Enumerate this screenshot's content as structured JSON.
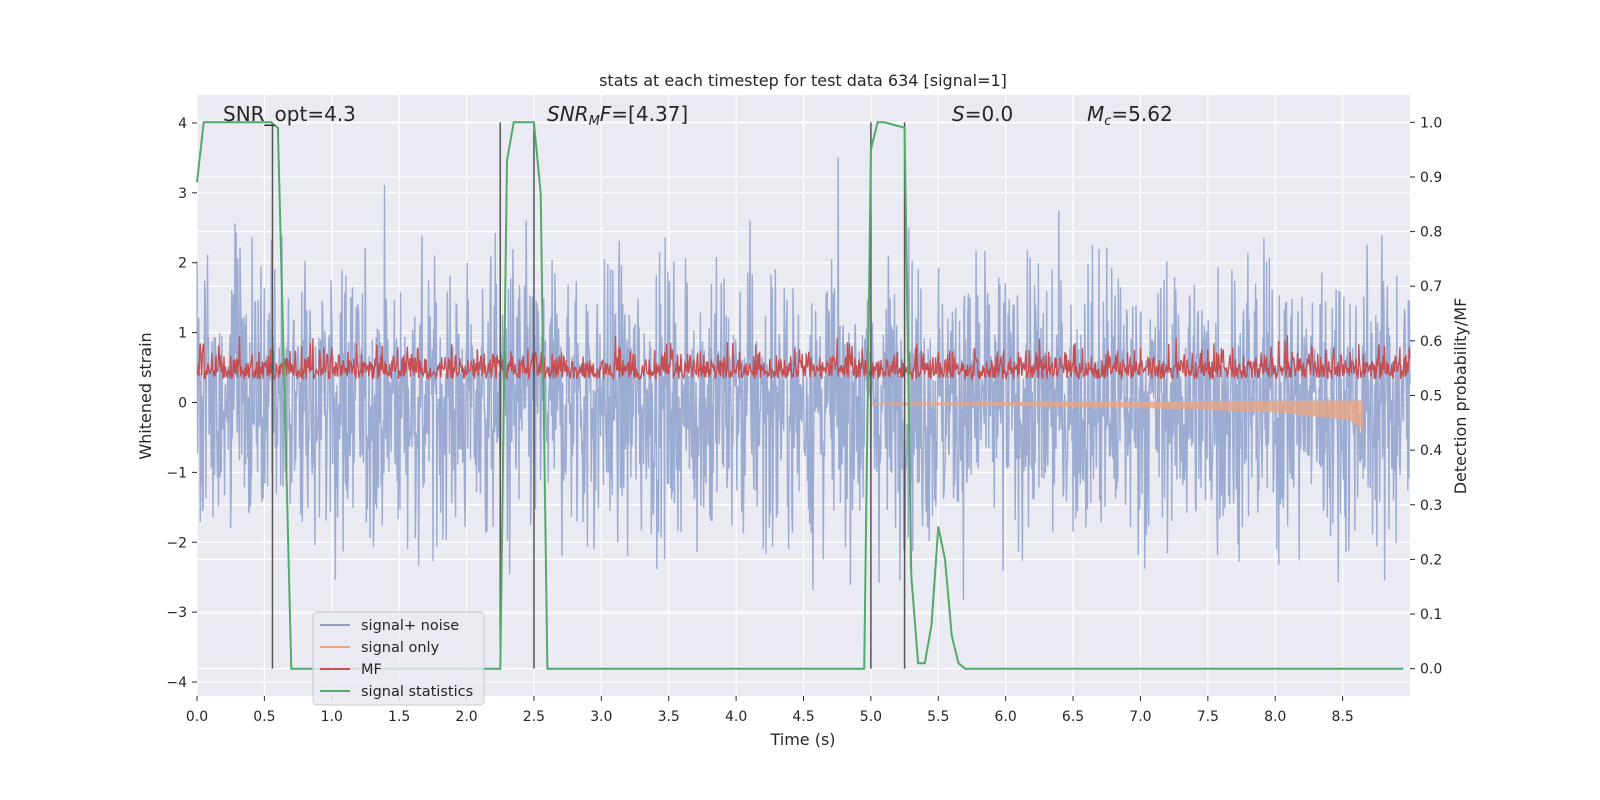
{
  "chart_data": {
    "type": "line",
    "title": "stats at each timestep for test data 634 [signal=1]",
    "xlabel": "Time (s)",
    "ylabel": "Whitened strain",
    "ylabel_right": "Detection probability/MF",
    "xlim": [
      0,
      9.0
    ],
    "ylim": [
      -4.2,
      4.4
    ],
    "ylim_right": [
      -0.05,
      1.05
    ],
    "x_ticks": [
      "0.0",
      "0.5",
      "1.0",
      "1.5",
      "2.0",
      "2.5",
      "3.0",
      "3.5",
      "4.0",
      "4.5",
      "5.0",
      "5.5",
      "6.0",
      "6.5",
      "7.0",
      "7.5",
      "8.0",
      "8.5"
    ],
    "y_ticks": [
      "4",
      "3",
      "2",
      "1",
      "0",
      "−1",
      "−2",
      "−3",
      "−4"
    ],
    "y_ticks_right": [
      "1.0",
      "0.9",
      "0.8",
      "0.7",
      "0.6",
      "0.5",
      "0.4",
      "0.3",
      "0.2",
      "0.1",
      "0.0"
    ],
    "grid": true,
    "legend_position": "lower-left",
    "annotations": {
      "snr_opt": "SNR_opt=4.3",
      "snr_mf_sym": "SNR",
      "snr_mf_sub": "M",
      "snr_mf_sym2": "F",
      "snr_mf_val": "=[4.37]",
      "s_sym": "S",
      "s_val": "=0.0",
      "mc_sym": "M",
      "mc_sub": "c",
      "mc_val": "=5.62"
    },
    "series": [
      {
        "name": "signal+ noise",
        "color": "#8da0cb",
        "description_range": [
          -3.8,
          4.0
        ]
      },
      {
        "name": "signal only",
        "color": "#e9a585"
      },
      {
        "name": "MF",
        "color": "#c44e52"
      },
      {
        "name": "signal statistics",
        "color": "#55a868"
      }
    ],
    "signal_statistics": {
      "x": [
        0.0,
        0.05,
        0.1,
        0.55,
        0.6,
        0.7,
        0.8,
        2.25,
        2.3,
        2.35,
        2.4,
        2.5,
        2.55,
        2.6,
        2.65,
        4.95,
        5.0,
        5.05,
        5.1,
        5.25,
        5.3,
        5.35,
        5.4,
        5.45,
        5.5,
        5.55,
        5.6,
        5.65,
        5.7,
        5.75,
        5.8,
        5.85,
        5.95,
        8.95
      ],
      "y": [
        0.89,
        1.0,
        1.0,
        1.0,
        0.99,
        0.0,
        0.0,
        0.0,
        0.93,
        1.0,
        1.0,
        1.0,
        0.87,
        0.0,
        0.0,
        0.0,
        0.95,
        1.0,
        1.0,
        0.99,
        0.17,
        0.01,
        0.01,
        0.08,
        0.26,
        0.2,
        0.06,
        0.01,
        0.0,
        0.0,
        0.0,
        0.0,
        0.0,
        0.0
      ]
    },
    "vertical_markers_x": [
      0.56,
      2.25,
      2.5,
      5.0,
      5.25
    ],
    "signal_only_envelope": {
      "x": [
        5.0,
        6.0,
        7.0,
        8.0,
        8.55,
        8.65
      ],
      "lower": [
        -0.03,
        -0.05,
        -0.08,
        -0.14,
        -0.25,
        -0.4
      ]
    }
  }
}
